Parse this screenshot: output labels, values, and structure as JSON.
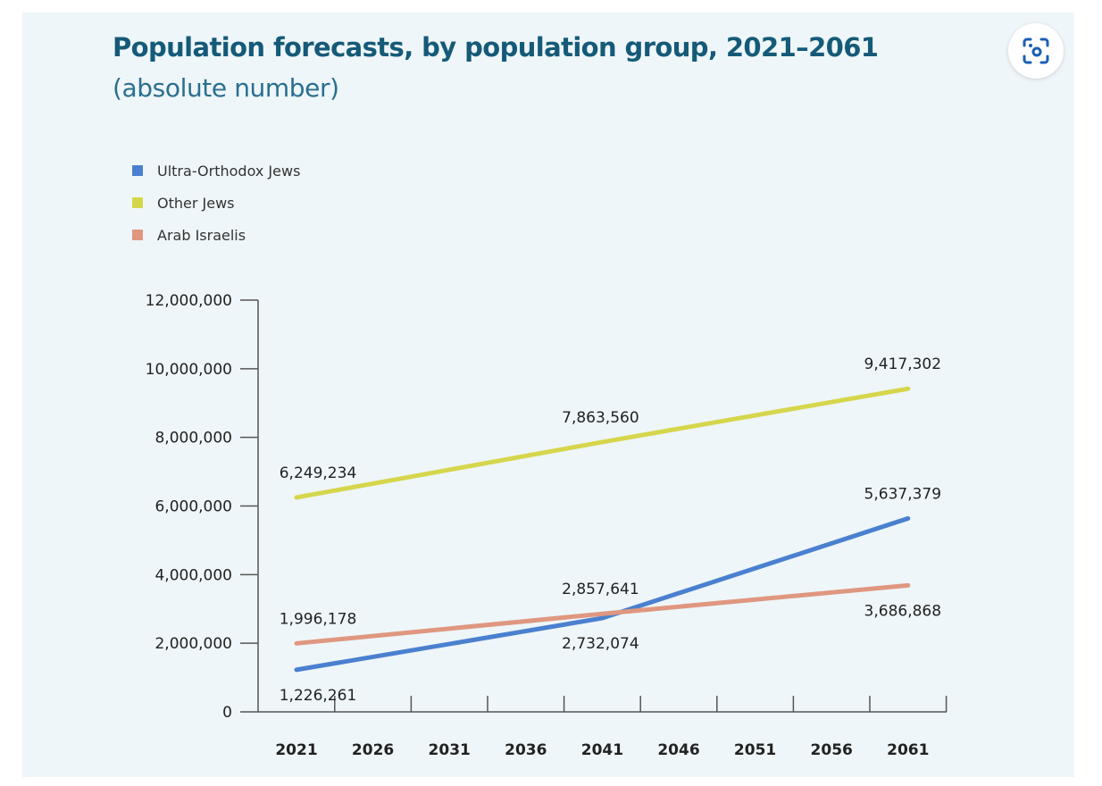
{
  "lens_button": {
    "icon": "visual-search-icon",
    "color": "#1a5fb4"
  },
  "chart_data": {
    "type": "line",
    "title": "Population forecasts, by population group, 2021–2061",
    "subtitle": "(absolute number)",
    "xlabel": "",
    "ylabel": "",
    "categories": [
      "2021",
      "2026",
      "2031",
      "2036",
      "2041",
      "2046",
      "2051",
      "2056",
      "2061"
    ],
    "yticks": [
      "0",
      "2,000,000",
      "4,000,000",
      "6,000,000",
      "8,000,000",
      "10,000,000",
      "12,000,000"
    ],
    "ytick_values": [
      0,
      2000000,
      4000000,
      6000000,
      8000000,
      10000000,
      12000000
    ],
    "ylim": [
      0,
      12000000
    ],
    "grid": false,
    "legend_position": "top-left",
    "series": [
      {
        "name": "Ultra-Orthodox Jews",
        "color": "#4a80cf",
        "x": [
          2021,
          2041,
          2061
        ],
        "values": [
          1226261,
          2732074,
          5637379
        ],
        "labels": [
          "1,226,261",
          "2,732,074",
          "5,637,379"
        ],
        "label_side": [
          "below",
          "below",
          "above"
        ]
      },
      {
        "name": "Other Jews",
        "color": "#d6d64c",
        "x": [
          2021,
          2041,
          2061
        ],
        "values": [
          6249234,
          7863560,
          9417302
        ],
        "labels": [
          "6,249,234",
          "7,863,560",
          "9,417,302"
        ],
        "label_side": [
          "above",
          "above",
          "above"
        ]
      },
      {
        "name": "Arab Israelis",
        "color": "#e0977f",
        "x": [
          2021,
          2041,
          2061
        ],
        "values": [
          1996178,
          2857641,
          3686868
        ],
        "labels": [
          "1,996,178",
          "2,857,641",
          "3,686,868"
        ],
        "label_side": [
          "above",
          "above",
          "below"
        ]
      }
    ]
  }
}
